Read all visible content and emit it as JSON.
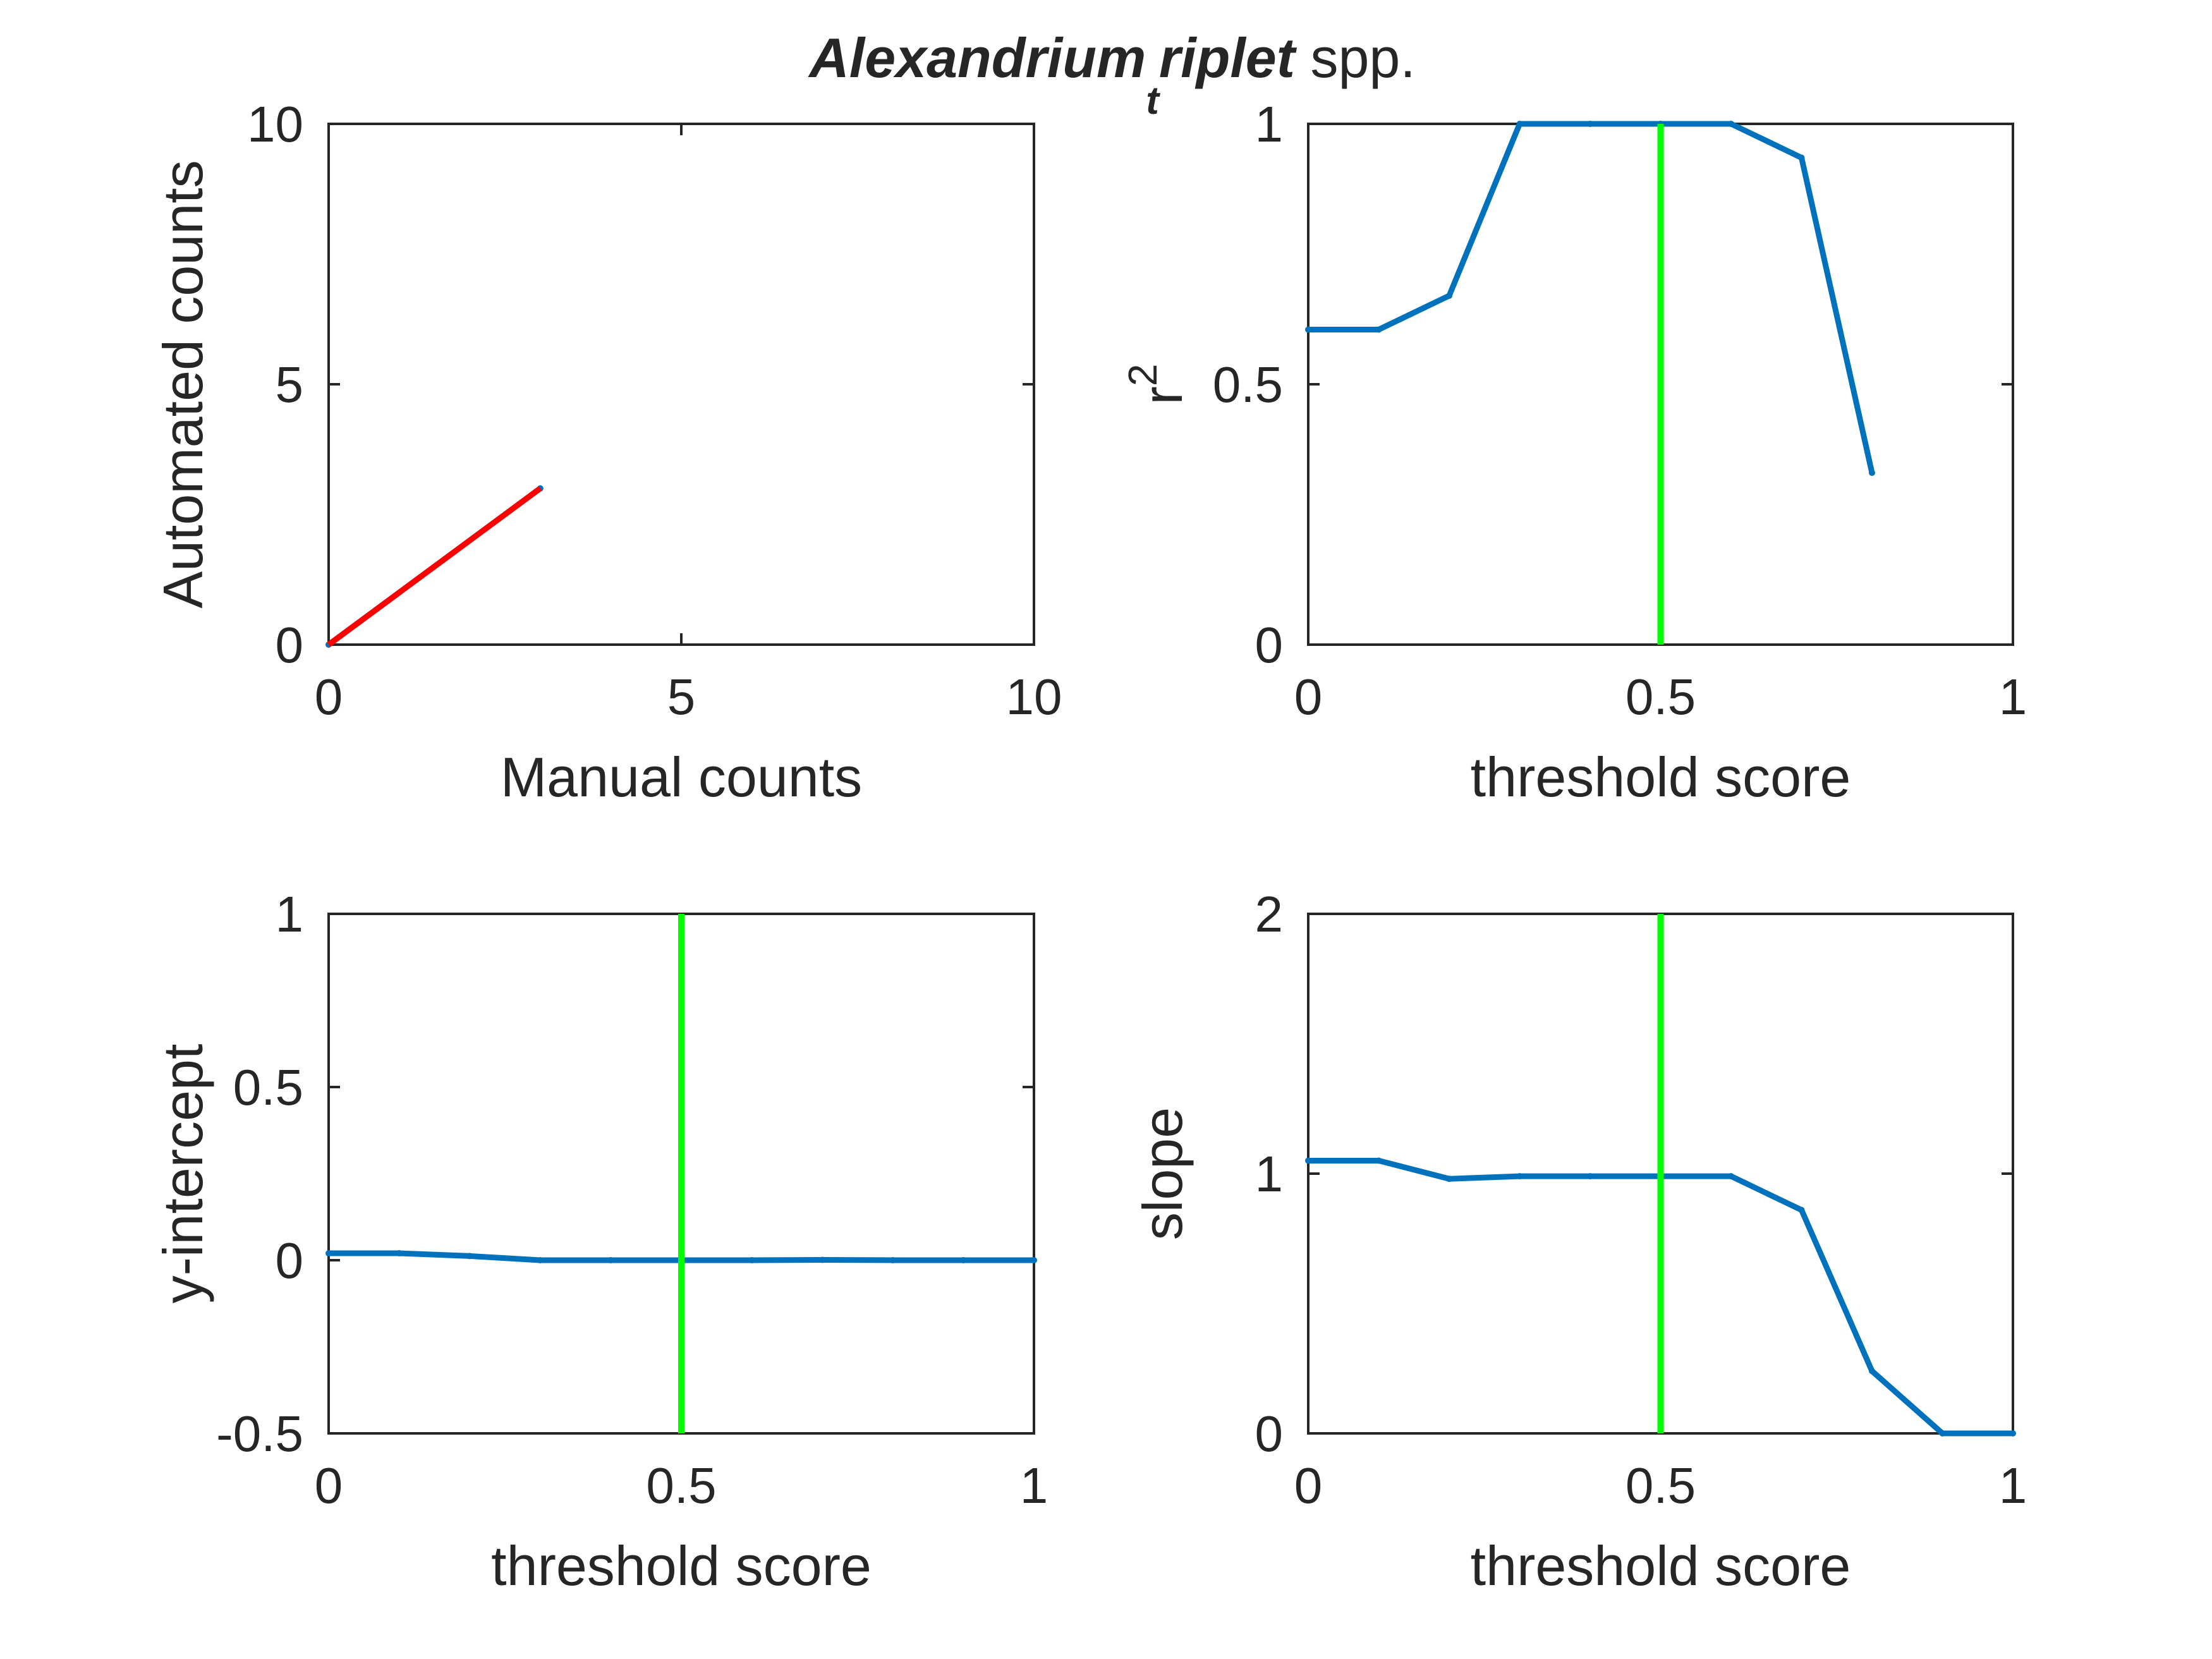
{
  "figure": {
    "title": {
      "part1": "Alexandrium",
      "subscript": "t",
      "part2": "riplet",
      "part3": " spp."
    }
  },
  "colors": {
    "series": "#0072BD",
    "fit_line": "#FF0000",
    "threshold_line": "#00FF00",
    "axes": "#262626"
  },
  "chart_data": [
    {
      "type": "line",
      "panel": "top-left",
      "xlabel": "Manual counts",
      "ylabel": "Automated counts",
      "xlim": [
        0,
        10
      ],
      "ylim": [
        0,
        10
      ],
      "xticks": [
        0,
        5,
        10
      ],
      "yticks": [
        0,
        5,
        10
      ],
      "xticklabels": [
        "0",
        "5",
        "10"
      ],
      "yticklabels": [
        "0",
        "5",
        "10"
      ],
      "grid": false,
      "series": [
        {
          "color": "#0072BD",
          "x": [
            0,
            3
          ],
          "y": [
            0,
            3
          ],
          "markers": true
        },
        {
          "color": "#FF0000",
          "x": [
            0,
            3
          ],
          "y": [
            0,
            3
          ],
          "markers": false
        }
      ],
      "vline": null
    },
    {
      "type": "line",
      "panel": "top-right",
      "xlabel": "threshold score",
      "ylabel": "r",
      "ylabel_sup": "2",
      "xlim": [
        0,
        1
      ],
      "ylim": [
        0,
        1
      ],
      "xticks": [
        0,
        0.5,
        1
      ],
      "yticks": [
        0,
        0.5,
        1
      ],
      "xticklabels": [
        "0",
        "0.5",
        "1"
      ],
      "yticklabels": [
        "0",
        "0.5",
        "1"
      ],
      "grid": false,
      "series": [
        {
          "color": "#0072BD",
          "x": [
            0,
            0.1,
            0.2,
            0.3,
            0.4,
            0.5,
            0.6,
            0.7,
            0.8
          ],
          "y": [
            0.605,
            0.605,
            0.67,
            1.0,
            1.0,
            1.0,
            1.0,
            0.935,
            0.33
          ],
          "markers": true
        }
      ],
      "vline": {
        "x": 0.5,
        "color": "#00FF00"
      }
    },
    {
      "type": "line",
      "panel": "bottom-left",
      "xlabel": "threshold score",
      "ylabel": "y-intercept",
      "xlim": [
        0,
        1
      ],
      "ylim": [
        -0.5,
        1
      ],
      "xticks": [
        0,
        0.5,
        1
      ],
      "yticks": [
        -0.5,
        0,
        0.5,
        1
      ],
      "xticklabels": [
        "0",
        "0.5",
        "1"
      ],
      "yticklabels": [
        "-0.5",
        "0",
        "0.5",
        "1"
      ],
      "grid": false,
      "series": [
        {
          "color": "#0072BD",
          "x": [
            0,
            0.1,
            0.2,
            0.3,
            0.4,
            0.5,
            0.6,
            0.7,
            0.8,
            0.9,
            1.0
          ],
          "y": [
            0.02,
            0.02,
            0.012,
            0.0,
            0.0,
            0.0,
            0.0,
            0.001,
            0.0,
            0.0,
            0.0
          ],
          "markers": true
        }
      ],
      "vline": {
        "x": 0.5,
        "color": "#00FF00"
      }
    },
    {
      "type": "line",
      "panel": "bottom-right",
      "xlabel": "threshold score",
      "ylabel": "slope",
      "xlim": [
        0,
        1
      ],
      "ylim": [
        0,
        2
      ],
      "xticks": [
        0,
        0.5,
        1
      ],
      "yticks": [
        0,
        1,
        2
      ],
      "xticklabels": [
        "0",
        "0.5",
        "1"
      ],
      "yticklabels": [
        "0",
        "1",
        "2"
      ],
      "grid": false,
      "series": [
        {
          "color": "#0072BD",
          "x": [
            0,
            0.1,
            0.2,
            0.3,
            0.4,
            0.5,
            0.6,
            0.7,
            0.8,
            0.9,
            1.0
          ],
          "y": [
            1.05,
            1.05,
            0.98,
            0.99,
            0.99,
            0.99,
            0.99,
            0.86,
            0.24,
            0.0,
            0.0
          ],
          "markers": true
        }
      ],
      "vline": {
        "x": 0.5,
        "color": "#00FF00"
      }
    }
  ]
}
